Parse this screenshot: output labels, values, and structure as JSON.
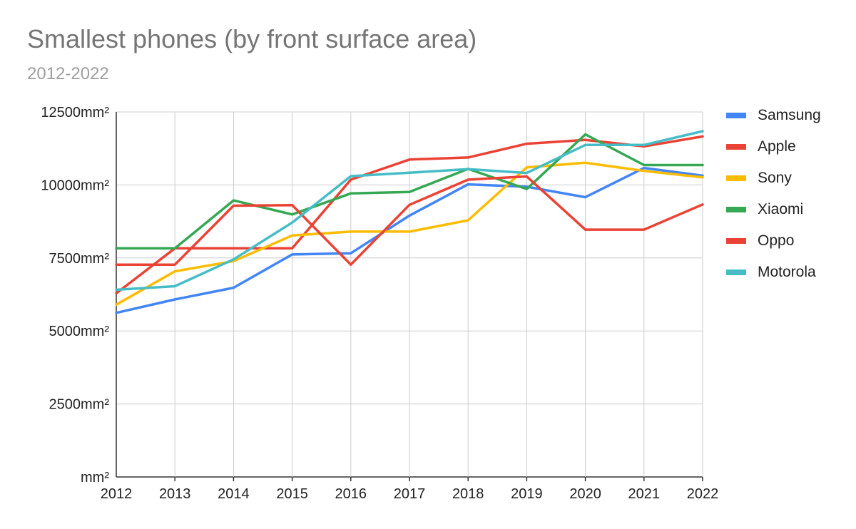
{
  "chart_data": {
    "type": "line",
    "title": "Smallest phones (by front surface area)",
    "subtitle": "2012-2022",
    "xlabel": "",
    "ylabel": "",
    "x": [
      "2012",
      "2013",
      "2014",
      "2015",
      "2016",
      "2017",
      "2018",
      "2019",
      "2020",
      "2021",
      "2022"
    ],
    "ylim": [
      0,
      12500
    ],
    "yticks": [
      0,
      2500,
      5000,
      7500,
      10000,
      12500
    ],
    "ytick_labels": [
      "mm²",
      "2500mm²",
      "5000mm²",
      "7500mm²",
      "10000mm²",
      "12500mm²"
    ],
    "grid": true,
    "legend_position": "right",
    "series": [
      {
        "name": "Samsung",
        "color": "#4285f4",
        "values": [
          5620,
          6080,
          6480,
          7620,
          7660,
          8950,
          10020,
          9940,
          9580,
          10580,
          10320
        ]
      },
      {
        "name": "Apple",
        "color": "#ea4335",
        "values": [
          6290,
          7830,
          7830,
          7830,
          10180,
          10870,
          10940,
          11410,
          11540,
          11320,
          11660
        ]
      },
      {
        "name": "Sony",
        "color": "#fbbc04",
        "values": [
          5900,
          7040,
          7390,
          8270,
          8400,
          8400,
          8790,
          10600,
          10760,
          10480,
          10260
        ]
      },
      {
        "name": "Xiaomi",
        "color": "#34a853",
        "values": [
          7830,
          7830,
          9470,
          8990,
          9710,
          9760,
          10550,
          9860,
          11730,
          10680,
          10680
        ]
      },
      {
        "name": "Oppo",
        "color": "#ea4335",
        "values": [
          7270,
          7270,
          9290,
          9310,
          7270,
          9320,
          10180,
          10290,
          8470,
          8470,
          9330
        ]
      },
      {
        "name": "Motorola",
        "color": "#46bdc6",
        "values": [
          6410,
          6530,
          7450,
          8710,
          10300,
          10420,
          10540,
          10410,
          11370,
          11370,
          11840
        ]
      }
    ]
  }
}
